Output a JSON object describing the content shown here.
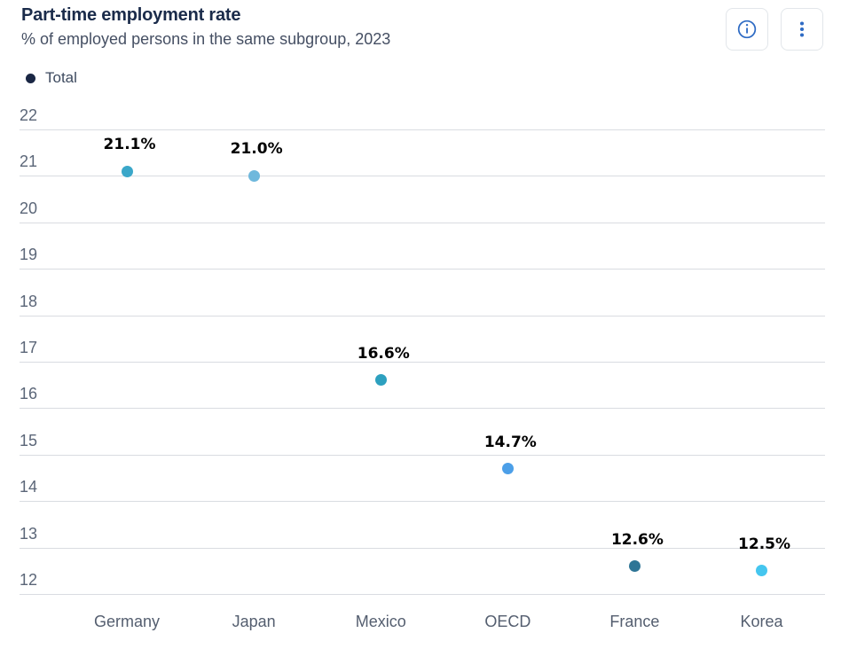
{
  "header": {
    "buttons": [
      {
        "name": "info",
        "icon": "info-icon"
      },
      {
        "name": "menu",
        "icon": "kebab-menu-icon"
      }
    ],
    "icon_color": "#2e6bc4",
    "button_border_color": "#e2e6ea"
  },
  "chart_data": {
    "type": "scatter",
    "title": "Part-time employment rate",
    "subtitle": "% of employed persons in the same subgroup, 2023",
    "legend": [
      {
        "label": "Total",
        "marker_color": "#1a2744"
      }
    ],
    "legend_position": "top-left",
    "categories": [
      "Germany",
      "Japan",
      "Mexico",
      "OECD",
      "France",
      "Korea"
    ],
    "series": [
      {
        "name": "Total",
        "values": [
          21.1,
          21.0,
          16.6,
          14.7,
          12.6,
          12.5
        ],
        "data_labels": [
          "21.1%",
          "21.0%",
          "16.6%",
          "14.7%",
          "12.6%",
          "12.5%"
        ],
        "point_colors": [
          "#3aa7c9",
          "#6fb8dc",
          "#2da0bf",
          "#4c9fe8",
          "#2e7596",
          "#45c6ef"
        ]
      }
    ],
    "ylim": [
      12,
      22
    ],
    "yticks": [
      12,
      13,
      14,
      15,
      16,
      17,
      18,
      19,
      20,
      21,
      22
    ],
    "grid": true,
    "xlabel": "",
    "ylabel": ""
  },
  "colors": {
    "title": "#1a2b4a",
    "subtitle": "#454f63",
    "y_axis_label": "#5b6678",
    "x_axis_label": "#545e6f",
    "gridline": "#d9dce1",
    "data_label": "#000000"
  }
}
